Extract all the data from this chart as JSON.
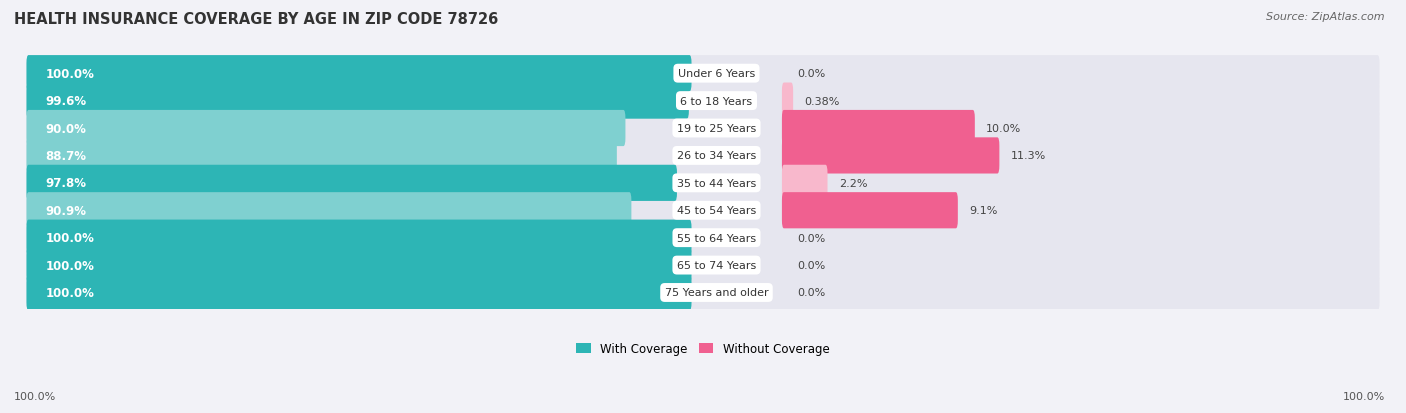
{
  "title": "HEALTH INSURANCE COVERAGE BY AGE IN ZIP CODE 78726",
  "source": "Source: ZipAtlas.com",
  "categories": [
    "Under 6 Years",
    "6 to 18 Years",
    "19 to 25 Years",
    "26 to 34 Years",
    "35 to 44 Years",
    "45 to 54 Years",
    "55 to 64 Years",
    "65 to 74 Years",
    "75 Years and older"
  ],
  "with_coverage": [
    100.0,
    99.6,
    90.0,
    88.7,
    97.8,
    90.9,
    100.0,
    100.0,
    100.0
  ],
  "without_coverage": [
    0.0,
    0.38,
    10.0,
    11.3,
    2.2,
    9.1,
    0.0,
    0.0,
    0.0
  ],
  "with_labels": [
    "100.0%",
    "99.6%",
    "90.0%",
    "88.7%",
    "97.8%",
    "90.9%",
    "100.0%",
    "100.0%",
    "100.0%"
  ],
  "without_labels": [
    "0.0%",
    "0.38%",
    "10.0%",
    "11.3%",
    "2.2%",
    "9.1%",
    "0.0%",
    "0.0%",
    "0.0%"
  ],
  "color_with_dark": "#2db5b5",
  "color_with_light": "#7fd0d0",
  "color_without_dark": "#f06090",
  "color_without_light": "#f8b8cc",
  "bg_color": "#f2f2f7",
  "bar_bg_color": "#e6e6ef",
  "title_fontsize": 10.5,
  "label_fontsize": 8.0,
  "inside_label_fontsize": 8.5,
  "legend_fontsize": 8.5,
  "source_fontsize": 8.0,
  "bottom_label": "100.0%",
  "legend_with": "With Coverage",
  "legend_without": "Without Coverage"
}
